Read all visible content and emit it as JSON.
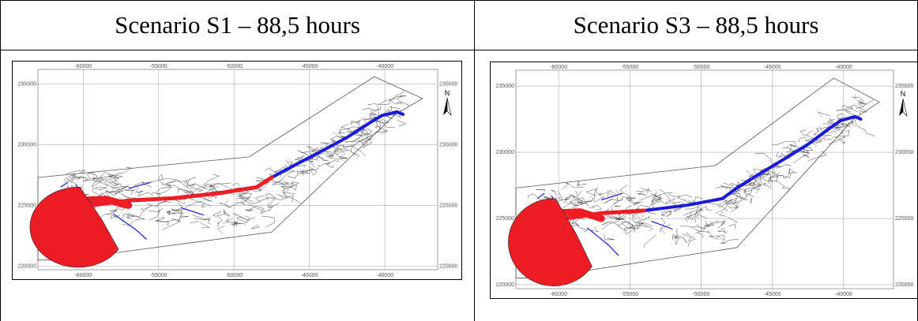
{
  "panels": [
    {
      "title": "Scenario S1 – 88,5 hours",
      "x_ticks": [
        "-60000",
        "-55000",
        "-50000",
        "-45000",
        "-40000"
      ],
      "y_ticks": [
        "235000",
        "230000",
        "225000",
        "220000"
      ],
      "north_label": "N",
      "red_extent_x": -47500
    },
    {
      "title": "Scenario S3 – 88,5 hours",
      "x_ticks": [
        "-60000",
        "-55000",
        "-50000",
        "-45000",
        "-40000"
      ],
      "y_ticks": [
        "235000",
        "230000",
        "225000",
        "220000"
      ],
      "north_label": "N",
      "red_extent_x": -52500
    }
  ],
  "colors": {
    "flooded_red": "#ee1c25",
    "river_blue": "#1a1adc",
    "network": "#333333"
  }
}
